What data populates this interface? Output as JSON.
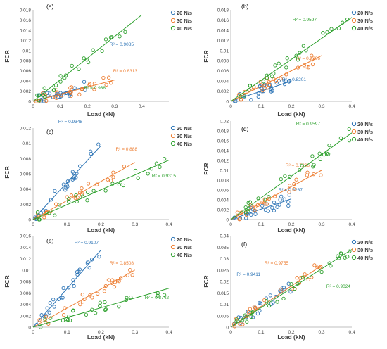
{
  "chart_data": [
    {
      "type": "scatter",
      "panel_label": "(a)",
      "xlabel": "Load (kN)",
      "ylabel": "FCR",
      "xlim": [
        0,
        0.5
      ],
      "x_ticks": [
        "0",
        "0.1",
        "0.2",
        "0.3",
        "0.4"
      ],
      "ylim": [
        0,
        0.018
      ],
      "y_ticks": [
        "0",
        "0.002",
        "0.004",
        "0.006",
        "0.008",
        "0.01",
        "0.012",
        "0.014",
        "0.016",
        "0.018"
      ],
      "legend": "top-right",
      "series": [
        {
          "name": "20 N/s",
          "color": "#2e75b6",
          "trend": [
            [
              0,
              0
            ],
            [
              0.2,
              0.003
            ]
          ],
          "r2": "R² = 0.9085"
        },
        {
          "name": "30 N/s",
          "color": "#ed7d31",
          "trend": [
            [
              0,
              0
            ],
            [
              0.3,
              0.0042
            ]
          ],
          "r2": "R² = 0.8313"
        },
        {
          "name": "40 N/s",
          "color": "#2ca02c",
          "trend": [
            [
              0,
              0
            ],
            [
              0.4,
              0.017
            ]
          ],
          "r2": "R² = 0.938"
        }
      ]
    },
    {
      "type": "scatter",
      "panel_label": "(b)",
      "xlabel": "Load (kN)",
      "ylabel": "FCR",
      "xlim": [
        0,
        0.4
      ],
      "x_ticks": [
        "0",
        "0.1",
        "0.2",
        "0.3",
        "0.4"
      ],
      "ylim": [
        0,
        0.018
      ],
      "y_ticks": [
        "0",
        "0.002",
        "0.004",
        "0.006",
        "0.008",
        "0.01",
        "0.012",
        "0.014",
        "0.016",
        "0.018"
      ],
      "legend": "top-right",
      "series": [
        {
          "name": "20 N/s",
          "color": "#2e75b6",
          "trend": [
            [
              0,
              0
            ],
            [
              0.2,
              0.004
            ]
          ],
          "r2": "R² = 0.8201"
        },
        {
          "name": "30 N/s",
          "color": "#ed7d31",
          "trend": [
            [
              0,
              0
            ],
            [
              0.3,
              0.009
            ]
          ],
          "r2": "R² = 0.7296"
        },
        {
          "name": "40 N/s",
          "color": "#2ca02c",
          "trend": [
            [
              0,
              0
            ],
            [
              0.4,
              0.0165
            ]
          ],
          "r2": "R² = 0.9597"
        }
      ]
    },
    {
      "type": "scatter",
      "panel_label": "(c)",
      "xlabel": "Load (kN)",
      "ylabel": "FCR",
      "xlim": [
        0,
        0.4
      ],
      "x_ticks": [
        "0",
        "0.1",
        "0.2",
        "0.3",
        "0.4"
      ],
      "ylim": [
        0,
        0.012
      ],
      "y_ticks": [
        "0",
        "0.002",
        "0.004",
        "0.006",
        "0.008",
        "0.01",
        "0.012"
      ],
      "legend": "top-right",
      "series": [
        {
          "name": "20 N/s",
          "color": "#2e75b6",
          "trend": [
            [
              0,
              0
            ],
            [
              0.2,
              0.0097
            ]
          ],
          "r2": "R² = 0.9348"
        },
        {
          "name": "30 N/s",
          "color": "#ed7d31",
          "trend": [
            [
              0,
              0
            ],
            [
              0.3,
              0.0075
            ]
          ],
          "r2": "R² = 0.888"
        },
        {
          "name": "40 N/s",
          "color": "#2ca02c",
          "trend": [
            [
              0,
              0
            ],
            [
              0.4,
              0.0078
            ]
          ],
          "r2": "R² = 0.9315"
        }
      ]
    },
    {
      "type": "scatter",
      "panel_label": "(d)",
      "xlabel": "Load (kN)",
      "ylabel": "FCR",
      "xlim": [
        0,
        0.4
      ],
      "x_ticks": [
        "0",
        "0.1",
        "0.2",
        "0.3",
        "0.4"
      ],
      "ylim": [
        0,
        0.02
      ],
      "y_ticks": [
        "0",
        "0.002",
        "0.004",
        "0.006",
        "0.008",
        "0.01",
        "0.012",
        "0.014",
        "0.016",
        "0.018",
        "0.02"
      ],
      "legend": "top-right",
      "series": [
        {
          "name": "20 N/s",
          "color": "#2e75b6",
          "trend": [
            [
              0,
              0
            ],
            [
              0.2,
              0.0042
            ]
          ],
          "r2": "R² = 0.8237"
        },
        {
          "name": "30 N/s",
          "color": "#ed7d31",
          "trend": [
            [
              0,
              0
            ],
            [
              0.3,
              0.01
            ]
          ],
          "r2": "R² = 0.7296"
        },
        {
          "name": "40 N/s",
          "color": "#2ca02c",
          "trend": [
            [
              0,
              0
            ],
            [
              0.4,
              0.0176
            ]
          ],
          "r2": "R² = 0.9597"
        }
      ]
    },
    {
      "type": "scatter",
      "panel_label": "(e)",
      "xlabel": "Load (kN)",
      "ylabel": "FCR",
      "xlim": [
        0,
        0.4
      ],
      "x_ticks": [
        "0",
        "0.1",
        "0.2",
        "0.3",
        "0.4"
      ],
      "ylim": [
        0,
        0.016
      ],
      "y_ticks": [
        "0",
        "0.002",
        "0.004",
        "0.006",
        "0.008",
        "0.01",
        "0.012",
        "0.014",
        "0.016"
      ],
      "legend": "top-right",
      "series": [
        {
          "name": "20 N/s",
          "color": "#2e75b6",
          "trend": [
            [
              0,
              0
            ],
            [
              0.2,
              0.0135
            ]
          ],
          "r2": "R² = 0.9107"
        },
        {
          "name": "30 N/s",
          "color": "#ed7d31",
          "trend": [
            [
              0,
              0
            ],
            [
              0.3,
              0.01
            ]
          ],
          "r2": "R² = 0.8508"
        },
        {
          "name": "40 N/s",
          "color": "#2ca02c",
          "trend": [
            [
              0,
              0
            ],
            [
              0.4,
              0.0068
            ]
          ],
          "r2": "R² = 0.8742"
        }
      ]
    },
    {
      "type": "scatter",
      "panel_label": "(f)",
      "xlabel": "Load (kN)",
      "ylabel": "FCR",
      "xlim": [
        0,
        0.4
      ],
      "x_ticks": [
        "0",
        "0.1",
        "0.2",
        "0.3",
        "0.4"
      ],
      "ylim": [
        0,
        0.04
      ],
      "y_ticks": [
        "0",
        "0.005",
        "0.01",
        "0.015",
        "0.02",
        "0.025",
        "0.03",
        "0.035",
        "0.04"
      ],
      "legend": "top-right",
      "series": [
        {
          "name": "20 N/s",
          "color": "#2e75b6",
          "trend": [
            [
              0,
              0
            ],
            [
              0.2,
              0.018
            ]
          ],
          "r2": "R² = 0.9411"
        },
        {
          "name": "30 N/s",
          "color": "#ed7d31",
          "trend": [
            [
              0,
              0
            ],
            [
              0.3,
              0.027
            ]
          ],
          "r2": "R² = 0.9755"
        },
        {
          "name": "40 N/s",
          "color": "#2ca02c",
          "trend": [
            [
              0,
              0
            ],
            [
              0.4,
              0.034
            ]
          ],
          "r2": "R² = 0.9024"
        }
      ]
    }
  ]
}
